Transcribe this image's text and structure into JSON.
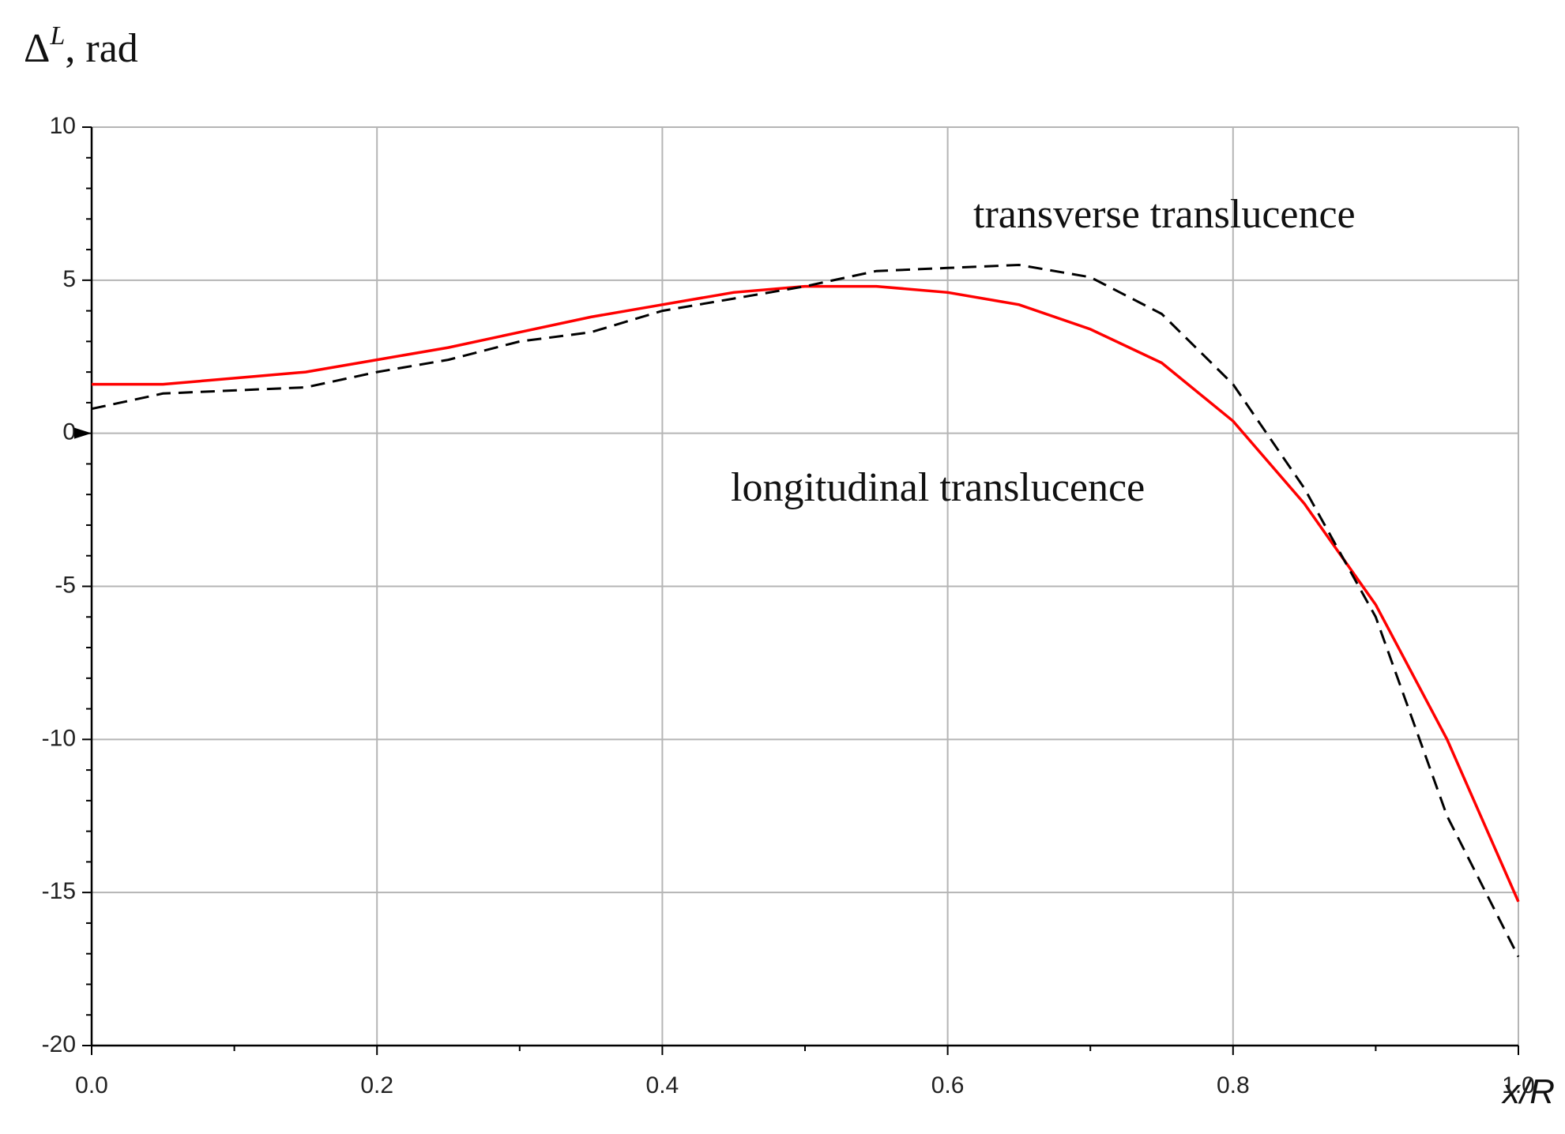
{
  "chart_data": {
    "type": "line",
    "y_label": [
      "Δ",
      "L",
      ", rad"
    ],
    "x_label": "x/R",
    "x": [
      0,
      0.05,
      0.1,
      0.15,
      0.2,
      0.25,
      0.3,
      0.35,
      0.4,
      0.45,
      0.5,
      0.55,
      0.6,
      0.65,
      0.7,
      0.75,
      0.8,
      0.85,
      0.9,
      0.95,
      1.0
    ],
    "series": [
      {
        "name": "longitudinal translucence",
        "color": "#ff0000",
        "dash": false,
        "values": [
          1.6,
          1.6,
          1.8,
          2.0,
          2.4,
          2.8,
          3.3,
          3.8,
          4.2,
          4.6,
          4.8,
          4.8,
          4.6,
          4.2,
          3.4,
          2.3,
          0.4,
          -2.3,
          -5.6,
          -10.0,
          -15.3
        ]
      },
      {
        "name": "transverse translucence",
        "color": "#000000",
        "dash": true,
        "values": [
          0.8,
          1.3,
          1.4,
          1.5,
          2.0,
          2.4,
          3.0,
          3.3,
          4.0,
          4.4,
          4.8,
          5.3,
          5.4,
          5.5,
          5.1,
          3.9,
          1.6,
          -1.8,
          -6.0,
          -12.5,
          -17.1
        ]
      }
    ],
    "xlim": [
      0,
      1
    ],
    "ylim": [
      -20,
      10
    ],
    "xticks": [
      {
        "value": 0,
        "label": "0.0"
      },
      0.2,
      0.4,
      0.6,
      0.8,
      {
        "value": 1,
        "label": "1.0"
      }
    ],
    "yticks": [
      -20,
      -15,
      -10,
      -5,
      0,
      5,
      10
    ],
    "grid": true
  }
}
